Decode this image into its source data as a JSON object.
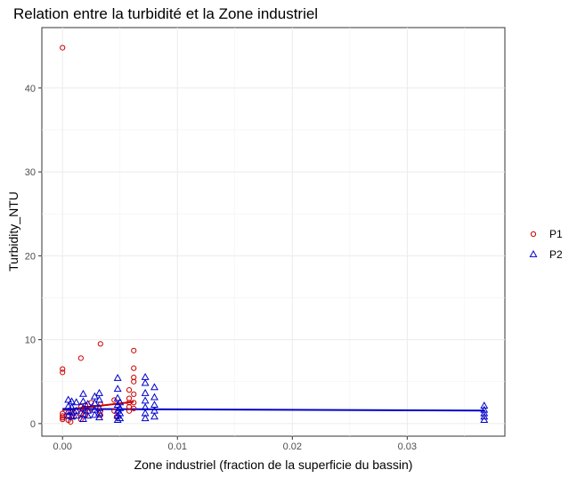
{
  "chart_data": {
    "type": "scatter",
    "title": "Relation entre la turbidité et la Zone industriel",
    "xlabel": "Zone industriel (fraction de la superficie du bassin)",
    "ylabel": "Turbidity_NTU",
    "xlim": [
      -0.0018,
      0.0385
    ],
    "ylim": [
      -1.5,
      47.2
    ],
    "x_ticks": [
      0,
      0.01,
      0.02,
      0.03
    ],
    "x_tick_labels": [
      "0.00",
      "0.01",
      "0.02",
      "0.03"
    ],
    "y_ticks": [
      0,
      10,
      20,
      30,
      40
    ],
    "y_tick_labels": [
      "0",
      "10",
      "20",
      "30",
      "40"
    ],
    "grid": true,
    "legend_position": "right",
    "series": [
      {
        "name": "P1",
        "color": "#cc0000",
        "marker": "circle",
        "points": [
          [
            0.0,
            44.8
          ],
          [
            0.0,
            6.5
          ],
          [
            0.0,
            6.1
          ],
          [
            0.0,
            1.2
          ],
          [
            0.0,
            0.9
          ],
          [
            0.0,
            0.7
          ],
          [
            0.0,
            0.5
          ],
          [
            0.0005,
            1.0
          ],
          [
            0.0005,
            0.4
          ],
          [
            0.0007,
            1.5
          ],
          [
            0.0007,
            0.2
          ],
          [
            0.001,
            1.3
          ],
          [
            0.001,
            0.8
          ],
          [
            0.0016,
            7.8
          ],
          [
            0.0016,
            2.0
          ],
          [
            0.0016,
            1.2
          ],
          [
            0.0016,
            0.5
          ],
          [
            0.002,
            2.2
          ],
          [
            0.002,
            1.6
          ],
          [
            0.002,
            1.0
          ],
          [
            0.0025,
            2.5
          ],
          [
            0.0025,
            1.8
          ],
          [
            0.0033,
            9.5
          ],
          [
            0.0033,
            2.3
          ],
          [
            0.0033,
            1.5
          ],
          [
            0.0033,
            1.0
          ],
          [
            0.0045,
            2.8
          ],
          [
            0.0045,
            1.5
          ],
          [
            0.0047,
            0.8
          ],
          [
            0.0058,
            4.0
          ],
          [
            0.0058,
            3.0
          ],
          [
            0.0058,
            2.5
          ],
          [
            0.0058,
            2.0
          ],
          [
            0.0058,
            1.5
          ],
          [
            0.0062,
            8.7
          ],
          [
            0.0062,
            6.6
          ],
          [
            0.0062,
            5.5
          ],
          [
            0.0062,
            5.0
          ],
          [
            0.0062,
            3.5
          ],
          [
            0.0062,
            2.5
          ],
          [
            0.0062,
            1.8
          ]
        ],
        "trend": [
          [
            0.0,
            1.6
          ],
          [
            0.0062,
            2.6
          ]
        ]
      },
      {
        "name": "P2",
        "color": "#0000cc",
        "marker": "triangle",
        "points": [
          [
            0.0005,
            2.8
          ],
          [
            0.0005,
            2.0
          ],
          [
            0.0005,
            1.4
          ],
          [
            0.0005,
            0.9
          ],
          [
            0.0008,
            2.6
          ],
          [
            0.0008,
            1.9
          ],
          [
            0.0008,
            1.3
          ],
          [
            0.0008,
            0.8
          ],
          [
            0.0012,
            2.5
          ],
          [
            0.0012,
            1.5
          ],
          [
            0.0012,
            0.9
          ],
          [
            0.0018,
            3.5
          ],
          [
            0.0018,
            2.6
          ],
          [
            0.0018,
            1.8
          ],
          [
            0.0018,
            1.1
          ],
          [
            0.0018,
            0.5
          ],
          [
            0.0022,
            2.3
          ],
          [
            0.0022,
            1.5
          ],
          [
            0.0022,
            0.9
          ],
          [
            0.0028,
            3.2
          ],
          [
            0.0028,
            2.4
          ],
          [
            0.0028,
            1.6
          ],
          [
            0.0028,
            1.0
          ],
          [
            0.0032,
            3.6
          ],
          [
            0.0032,
            2.8
          ],
          [
            0.0032,
            1.8
          ],
          [
            0.0032,
            1.2
          ],
          [
            0.0032,
            0.7
          ],
          [
            0.0048,
            5.4
          ],
          [
            0.0048,
            4.1
          ],
          [
            0.0048,
            3.0
          ],
          [
            0.0048,
            2.2
          ],
          [
            0.0048,
            1.5
          ],
          [
            0.0048,
            0.9
          ],
          [
            0.0048,
            0.4
          ],
          [
            0.005,
            2.5
          ],
          [
            0.005,
            1.8
          ],
          [
            0.005,
            1.2
          ],
          [
            0.005,
            0.6
          ],
          [
            0.0072,
            5.5
          ],
          [
            0.0072,
            4.8
          ],
          [
            0.0072,
            3.6
          ],
          [
            0.0072,
            2.7
          ],
          [
            0.0072,
            1.9
          ],
          [
            0.0072,
            1.2
          ],
          [
            0.0072,
            0.6
          ],
          [
            0.008,
            4.3
          ],
          [
            0.008,
            3.1
          ],
          [
            0.008,
            2.2
          ],
          [
            0.008,
            1.5
          ],
          [
            0.008,
            0.8
          ],
          [
            0.0367,
            2.1
          ],
          [
            0.0367,
            1.6
          ],
          [
            0.0367,
            1.2
          ],
          [
            0.0367,
            0.8
          ],
          [
            0.0367,
            0.4
          ]
        ],
        "trend": [
          [
            0.0,
            1.75
          ],
          [
            0.0367,
            1.55
          ]
        ]
      }
    ]
  }
}
